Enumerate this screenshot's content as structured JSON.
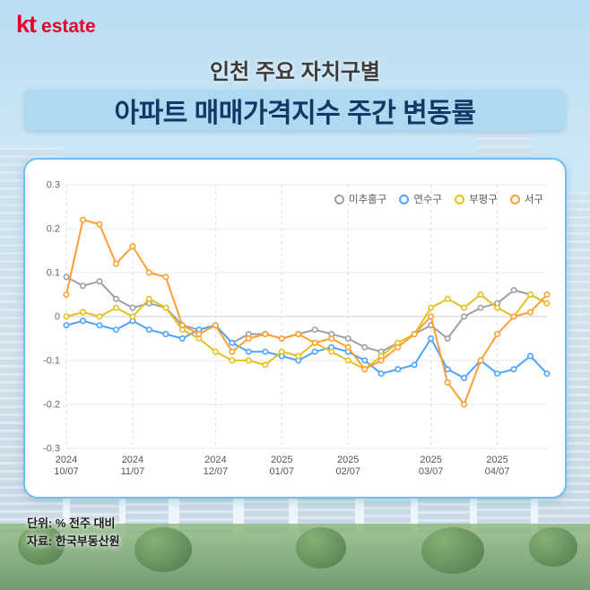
{
  "logo": {
    "kt": "kt",
    "estate": "estate"
  },
  "header": {
    "subtitle": "인천 주요 자치구별",
    "title": "아파트 매매가격지수 주간 변동률"
  },
  "footer": {
    "unit": "단위: % 전주 대비",
    "source": "자료: 한국부동산원"
  },
  "chart_data": {
    "type": "line",
    "title": "아파트 매매가격지수 주간 변동률",
    "ylabel": "",
    "xlabel": "",
    "ylim": [
      -0.3,
      0.3
    ],
    "yticks": [
      0.3,
      0.2,
      0.1,
      0,
      -0.1,
      -0.2,
      -0.3
    ],
    "grid": true,
    "legend_position": "top-right",
    "n_points": 30,
    "x_tick_indices": [
      0,
      4,
      9,
      13,
      17,
      22,
      26
    ],
    "x_tick_labels": [
      [
        "2024",
        "10/07"
      ],
      [
        "2024",
        "11/07"
      ],
      [
        "2024",
        "12/07"
      ],
      [
        "2025",
        "01/07"
      ],
      [
        "2025",
        "02/07"
      ],
      [
        "2025",
        "03/07"
      ],
      [
        "2025",
        "04/07"
      ]
    ],
    "series": [
      {
        "name": "미추홀구",
        "color": "#9aa0a6",
        "values": [
          0.09,
          0.07,
          0.08,
          0.04,
          0.02,
          0.03,
          0.02,
          -0.02,
          -0.03,
          -0.02,
          -0.06,
          -0.04,
          -0.04,
          -0.05,
          -0.04,
          -0.03,
          -0.04,
          -0.05,
          -0.07,
          -0.08,
          -0.06,
          -0.04,
          -0.02,
          -0.05,
          0.0,
          0.02,
          0.03,
          0.06,
          0.05,
          0.03
        ]
      },
      {
        "name": "연수구",
        "color": "#4da3ff",
        "values": [
          -0.02,
          -0.01,
          -0.02,
          -0.03,
          -0.01,
          -0.03,
          -0.04,
          -0.05,
          -0.03,
          -0.02,
          -0.06,
          -0.08,
          -0.08,
          -0.09,
          -0.1,
          -0.08,
          -0.07,
          -0.08,
          -0.1,
          -0.13,
          -0.12,
          -0.11,
          -0.05,
          -0.12,
          -0.14,
          -0.1,
          -0.13,
          -0.12,
          -0.09,
          -0.13
        ]
      },
      {
        "name": "부평구",
        "color": "#e3c21d",
        "values": [
          0.0,
          0.01,
          0.0,
          0.02,
          0.0,
          0.04,
          0.02,
          -0.03,
          -0.05,
          -0.08,
          -0.1,
          -0.1,
          -0.11,
          -0.08,
          -0.09,
          -0.06,
          -0.08,
          -0.1,
          -0.12,
          -0.09,
          -0.06,
          -0.04,
          0.02,
          0.04,
          0.02,
          0.05,
          0.02,
          0.0,
          0.05,
          0.03
        ]
      },
      {
        "name": "서구",
        "color": "#ff9f33",
        "values": [
          0.05,
          0.22,
          0.21,
          0.12,
          0.16,
          0.1,
          0.09,
          -0.02,
          -0.04,
          -0.02,
          -0.08,
          -0.05,
          -0.04,
          -0.05,
          -0.04,
          -0.06,
          -0.05,
          -0.07,
          -0.12,
          -0.1,
          -0.07,
          -0.04,
          0.0,
          -0.15,
          -0.2,
          -0.1,
          -0.04,
          0.0,
          0.01,
          0.05
        ]
      }
    ]
  }
}
